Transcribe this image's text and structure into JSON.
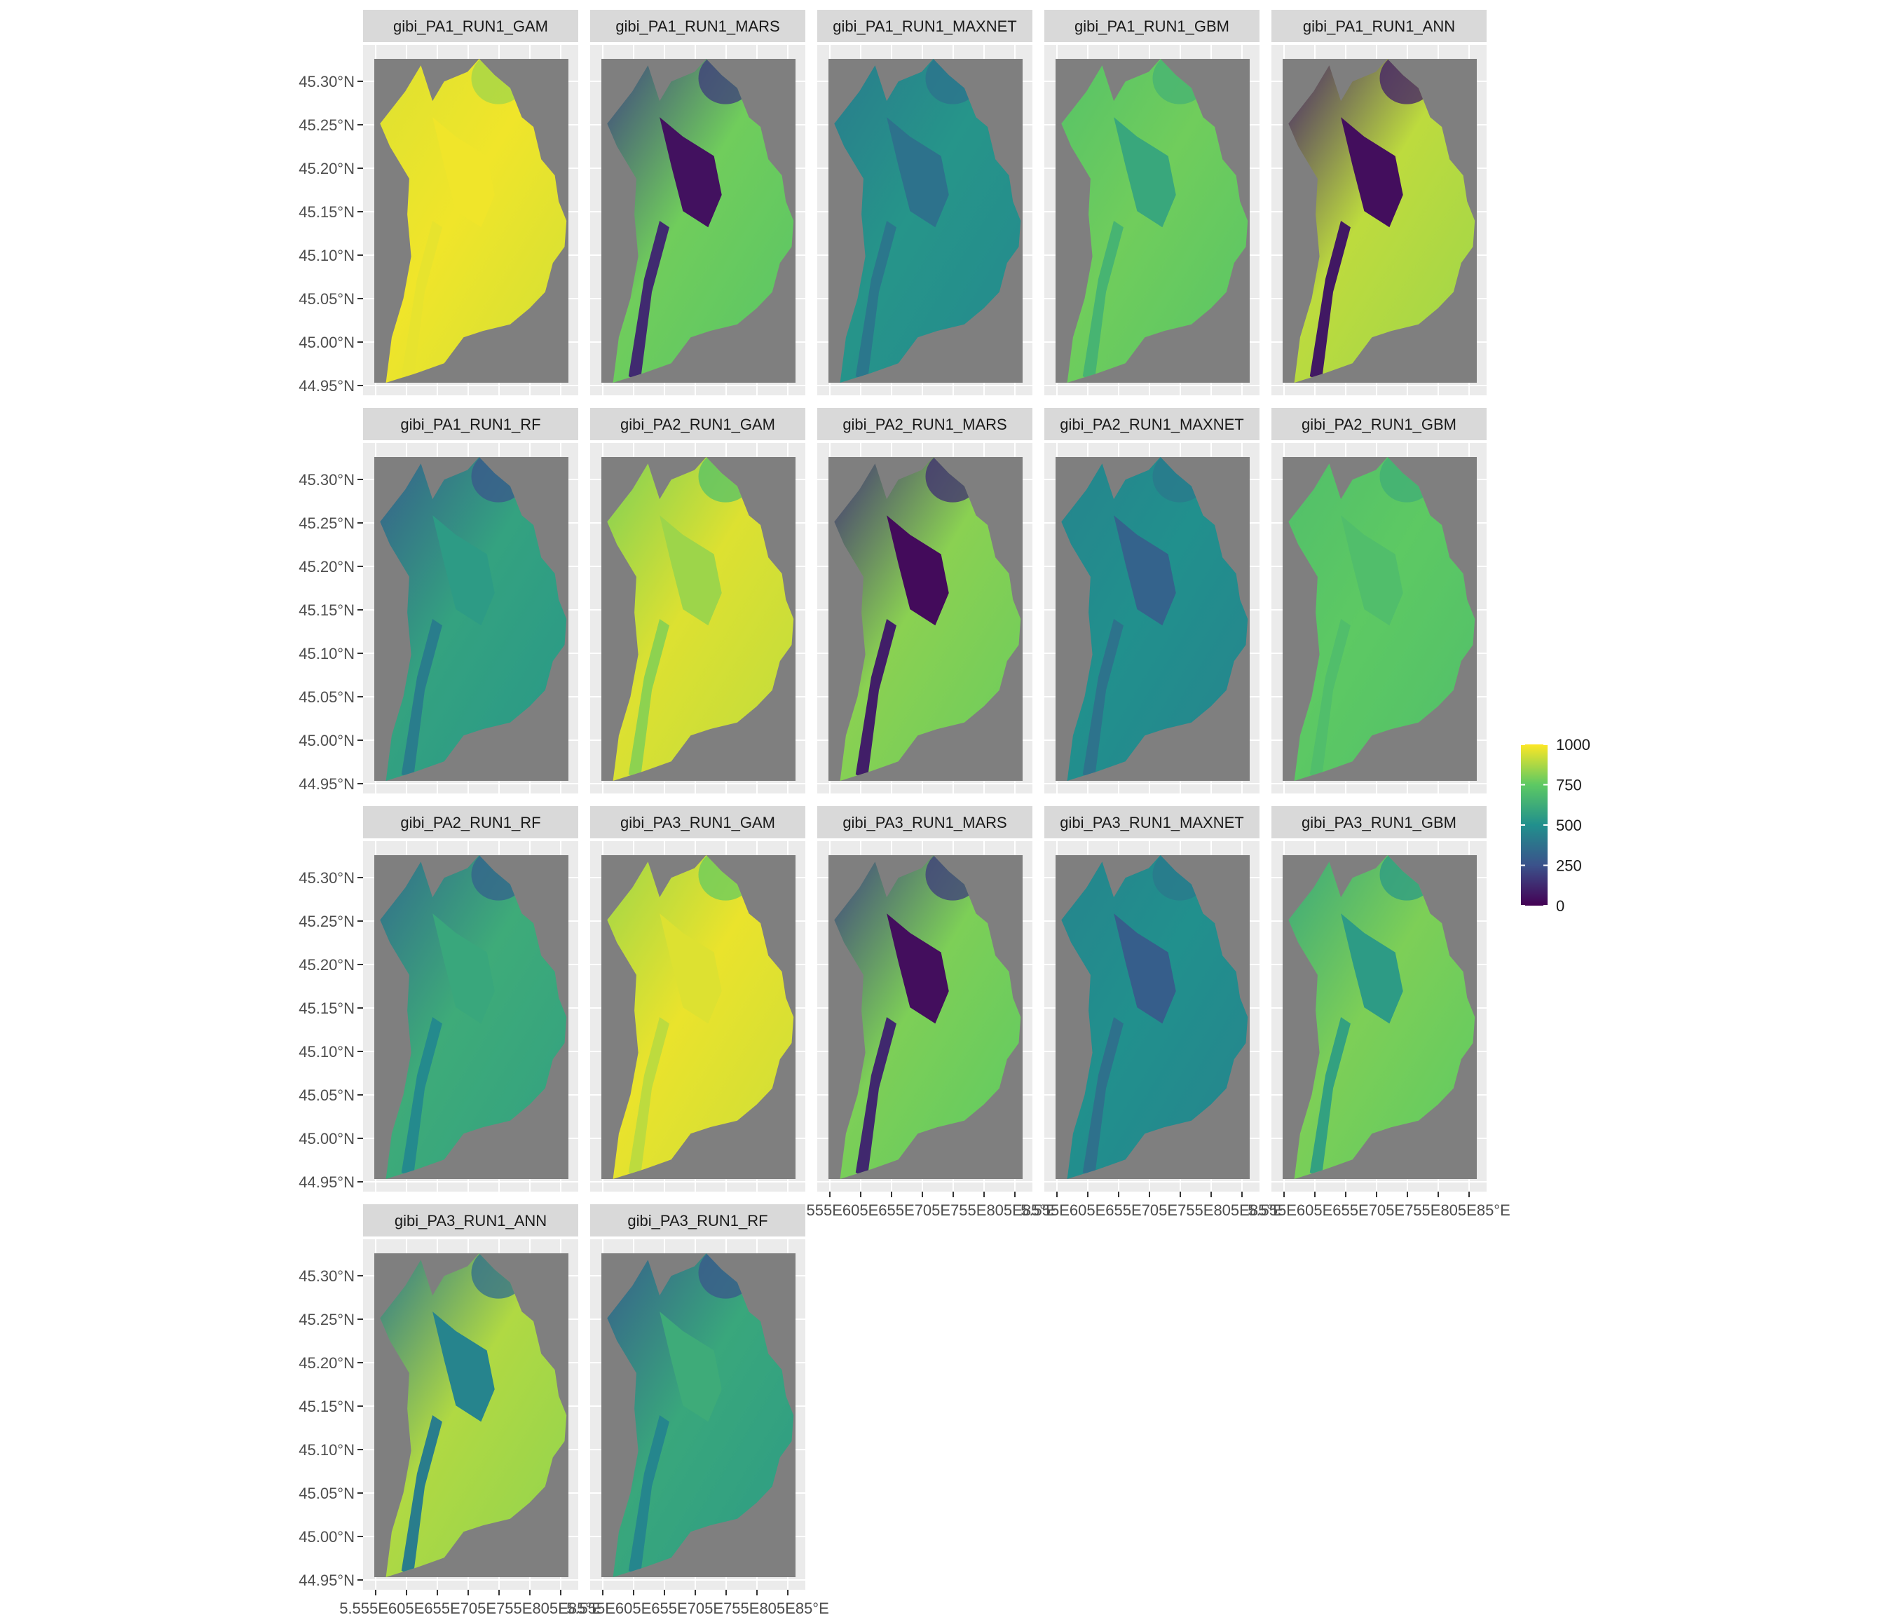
{
  "chart_data": {
    "type": "heatmap",
    "description_of_panels": "faceted raster maps of habitat suitability",
    "panels": [
      {
        "title": "gibi_PA1_RUN1_GAM",
        "level": 0.98,
        "city_level": 0.98,
        "west_level": 0.95
      },
      {
        "title": "gibi_PA1_RUN1_MARS",
        "level": 0.78,
        "city_level": 0.05,
        "west_level": 0.2
      },
      {
        "title": "gibi_PA1_RUN1_MAXNET",
        "level": 0.52,
        "city_level": 0.38,
        "west_level": 0.42
      },
      {
        "title": "gibi_PA1_RUN1_GBM",
        "level": 0.78,
        "city_level": 0.6,
        "west_level": 0.72
      },
      {
        "title": "gibi_PA1_RUN1_ANN",
        "level": 0.9,
        "city_level": 0.04,
        "west_level": 0.1
      },
      {
        "title": "gibi_PA1_RUN1_RF",
        "level": 0.58,
        "city_level": 0.55,
        "west_level": 0.3
      },
      {
        "title": "gibi_PA2_RUN1_GAM",
        "level": 0.95,
        "city_level": 0.85,
        "west_level": 0.8
      },
      {
        "title": "gibi_PA2_RUN1_MARS",
        "level": 0.82,
        "city_level": 0.03,
        "west_level": 0.15
      },
      {
        "title": "gibi_PA2_RUN1_MAXNET",
        "level": 0.5,
        "city_level": 0.32,
        "west_level": 0.45
      },
      {
        "title": "gibi_PA2_RUN1_GBM",
        "level": 0.75,
        "city_level": 0.7,
        "west_level": 0.7
      },
      {
        "title": "gibi_PA2_RUN1_RF",
        "level": 0.62,
        "city_level": 0.6,
        "west_level": 0.35
      },
      {
        "title": "gibi_PA3_RUN1_GAM",
        "level": 0.97,
        "city_level": 0.95,
        "west_level": 0.85
      },
      {
        "title": "gibi_PA3_RUN1_MARS",
        "level": 0.8,
        "city_level": 0.04,
        "west_level": 0.2
      },
      {
        "title": "gibi_PA3_RUN1_MAXNET",
        "level": 0.5,
        "city_level": 0.3,
        "west_level": 0.45
      },
      {
        "title": "gibi_PA3_RUN1_GBM",
        "level": 0.8,
        "city_level": 0.55,
        "west_level": 0.6
      },
      {
        "title": "gibi_PA3_RUN1_ANN",
        "level": 0.88,
        "city_level": 0.45,
        "west_level": 0.4
      },
      {
        "title": "gibi_PA3_RUN1_RF",
        "level": 0.6,
        "city_level": 0.62,
        "west_level": 0.3
      }
    ],
    "y_ticks": [
      "45.30°N",
      "45.25°N",
      "45.20°N",
      "45.15°N",
      "45.10°N",
      "45.05°N",
      "45.00°N",
      "44.95°N"
    ],
    "x_ticks": [
      "5.55°E",
      "5.60°E",
      "5.65°E",
      "5.70°E",
      "5.75°E",
      "5.80°E",
      "5.85°E"
    ],
    "x_tick_label_visible": "5.555E605E655E705E755E805E85°E",
    "legend": {
      "ticks": [
        "1000",
        "750",
        "500",
        "250",
        "0"
      ],
      "range": [
        0,
        1000
      ],
      "placement": "right",
      "colors": [
        "#440154",
        "#3b528b",
        "#21908d",
        "#5dc963",
        "#fde725"
      ]
    },
    "panel_background": "#7f7f7f",
    "strip_background": "#d9d9d9",
    "grid": true
  }
}
